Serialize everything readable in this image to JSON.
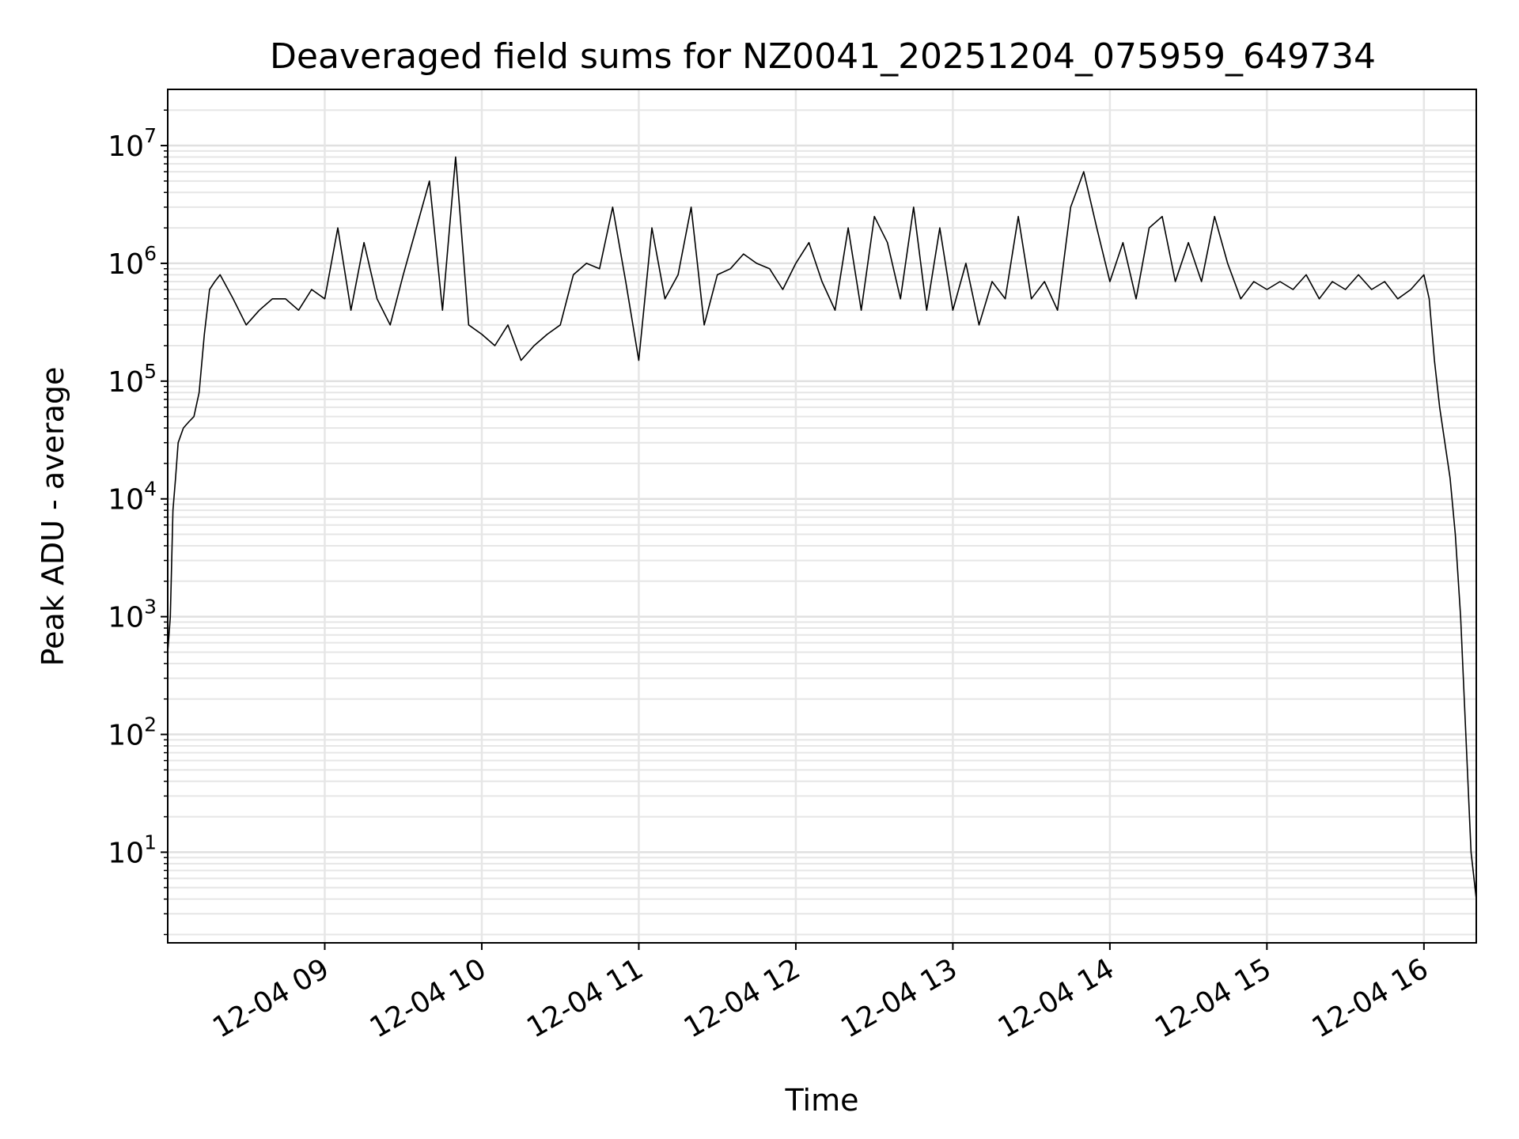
{
  "chart_data": {
    "type": "line",
    "title": "Deaveraged field sums for NZ0041_20251204_075959_649734",
    "xlabel": "Time",
    "ylabel": "Peak ADU - average",
    "yscale": "log",
    "xlim": [
      "2025-12-04 08:00",
      "2025-12-04 16:20"
    ],
    "ylim": [
      1.7,
      30000000
    ],
    "grid": true,
    "x_ticks": [
      {
        "label": "12-04 09",
        "value": "2025-12-04 09:00"
      },
      {
        "label": "12-04 10",
        "value": "2025-12-04 10:00"
      },
      {
        "label": "12-04 11",
        "value": "2025-12-04 11:00"
      },
      {
        "label": "12-04 12",
        "value": "2025-12-04 12:00"
      },
      {
        "label": "12-04 13",
        "value": "2025-12-04 13:00"
      },
      {
        "label": "12-04 14",
        "value": "2025-12-04 14:00"
      },
      {
        "label": "12-04 15",
        "value": "2025-12-04 15:00"
      },
      {
        "label": "12-04 16",
        "value": "2025-12-04 16:00"
      }
    ],
    "y_ticks": [
      {
        "base": "10",
        "exp": "1",
        "value": 10
      },
      {
        "base": "10",
        "exp": "2",
        "value": 100
      },
      {
        "base": "10",
        "exp": "3",
        "value": 1000
      },
      {
        "base": "10",
        "exp": "4",
        "value": 10000
      },
      {
        "base": "10",
        "exp": "5",
        "value": 100000
      },
      {
        "base": "10",
        "exp": "6",
        "value": 1000000
      },
      {
        "base": "10",
        "exp": "7",
        "value": 10000000
      }
    ],
    "series": [
      {
        "color": "#000000",
        "x": [
          "08:00",
          "08:01",
          "08:02",
          "08:03",
          "08:04",
          "08:06",
          "08:08",
          "08:10",
          "08:12",
          "08:14",
          "08:16",
          "08:18",
          "08:20",
          "08:25",
          "08:30",
          "08:35",
          "08:40",
          "08:45",
          "08:50",
          "08:55",
          "09:00",
          "09:05",
          "09:10",
          "09:15",
          "09:20",
          "09:25",
          "09:30",
          "09:35",
          "09:40",
          "09:45",
          "09:50",
          "09:55",
          "10:00",
          "10:05",
          "10:10",
          "10:15",
          "10:20",
          "10:25",
          "10:30",
          "10:35",
          "10:40",
          "10:45",
          "10:50",
          "10:55",
          "11:00",
          "11:05",
          "11:10",
          "11:15",
          "11:20",
          "11:25",
          "11:30",
          "11:35",
          "11:40",
          "11:45",
          "11:50",
          "11:55",
          "12:00",
          "12:05",
          "12:10",
          "12:15",
          "12:20",
          "12:25",
          "12:30",
          "12:35",
          "12:40",
          "12:45",
          "12:50",
          "12:55",
          "13:00",
          "13:05",
          "13:10",
          "13:15",
          "13:20",
          "13:25",
          "13:30",
          "13:35",
          "13:40",
          "13:45",
          "13:50",
          "13:55",
          "14:00",
          "14:05",
          "14:10",
          "14:15",
          "14:20",
          "14:25",
          "14:30",
          "14:35",
          "14:40",
          "14:45",
          "14:50",
          "14:55",
          "15:00",
          "15:05",
          "15:10",
          "15:15",
          "15:20",
          "15:25",
          "15:30",
          "15:35",
          "15:40",
          "15:45",
          "15:50",
          "15:55",
          "16:00",
          "16:02",
          "16:04",
          "16:06",
          "16:08",
          "16:10",
          "16:12",
          "16:14",
          "16:16",
          "16:18",
          "16:20"
        ],
        "y": [
          500,
          1000,
          8000,
          15000,
          30000,
          40000,
          45000,
          50000,
          80000,
          250000,
          600000,
          700000,
          800000,
          500000,
          300000,
          400000,
          500000,
          500000,
          400000,
          600000,
          500000,
          2000000,
          400000,
          1500000,
          500000,
          300000,
          800000,
          2000000,
          5000000,
          400000,
          8000000,
          300000,
          250000,
          200000,
          300000,
          150000,
          200000,
          250000,
          300000,
          800000,
          1000000,
          900000,
          3000000,
          700000,
          150000,
          2000000,
          500000,
          800000,
          3000000,
          300000,
          800000,
          900000,
          1200000,
          1000000,
          900000,
          600000,
          1000000,
          1500000,
          700000,
          400000,
          2000000,
          400000,
          2500000,
          1500000,
          500000,
          3000000,
          400000,
          2000000,
          400000,
          1000000,
          300000,
          700000,
          500000,
          2500000,
          500000,
          700000,
          400000,
          3000000,
          6000000,
          2000000,
          700000,
          1500000,
          500000,
          2000000,
          2500000,
          700000,
          1500000,
          700000,
          2500000,
          1000000,
          500000,
          700000,
          600000,
          700000,
          600000,
          800000,
          500000,
          700000,
          600000,
          800000,
          600000,
          700000,
          500000,
          600000,
          800000,
          500000,
          150000,
          60000,
          30000,
          15000,
          5000,
          1000,
          100,
          10,
          4
        ]
      }
    ]
  }
}
